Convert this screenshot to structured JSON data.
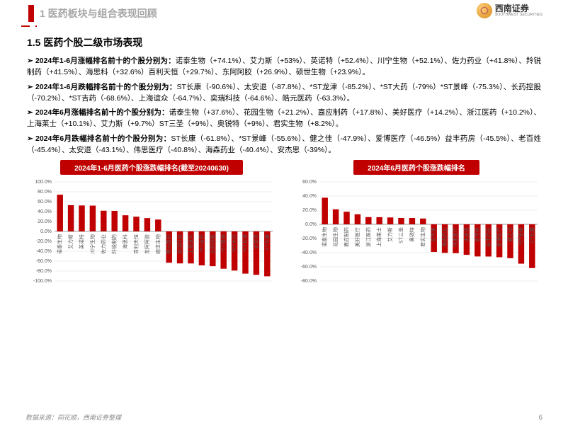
{
  "header": {
    "section_num_title": "1 医药板块与组合表现回顾",
    "logo_text": "西南证券",
    "logo_sub": "SOUTHWEST SECURITIES"
  },
  "section_title": "1.5 医药个股二级市场表现",
  "bullets": [
    {
      "lead": "2024年1-6月涨幅排名前十的个股分别为：",
      "body": "诺泰生物（+74.1%）、艾力斯（+53%）、英诺特（+52.4%）、川宁生物（+52.1%）、佐力药业（+41.8%）、羚锐制药（+41.5%）、海思科（+32.6%）百利天恒（+29.7%）、东阿阿胶（+26.9%）、硕世生物（+23.9%）。"
    },
    {
      "lead": "2024年1-6月跌幅排名前十的个股分别为：",
      "body": "ST长康（-90.6%）、太安退（-87.8%）、*ST龙津（-85.2%）、*ST大药（-79%）*ST景峰（-75.3%）、长药控股（-70.2%）、*ST吉药（-68.6%）、上海谊众（-64.7%）、奕瑞科技（-64.6%）、皓元医药（-63.3%）。"
    },
    {
      "lead": "2024年6月涨幅排名前十的个股分别为：",
      "body": "诺泰生物（+37.6%）、花园生物（+21.2%）、嘉应制药（+17.8%）、美好医疗（+14.2%）、浙江医药（+10.2%）、上海莱士（+10.1%）、艾力斯（+9.7%）ST三圣（+9%）、奥锐特（+9%）、君实生物（+8.2%）。"
    },
    {
      "lead": "2024年6月跌幅排名前十的个股分别为：",
      "body": "ST长康（-61.8%）、*ST景峰（-55.6%）、健之佳（-47.9%）、爱博医疗（-46.5%）益丰药房（-45.5%）、老百姓（-45.4%）、太安退（-43.1%）、伟思医疗（-40.8%）、海森药业（-40.4%）、安杰思（-39%）。"
    }
  ],
  "chart_left": {
    "title": "2024年1-6月医药个股涨跌幅排名(截至20240630)",
    "type": "bar",
    "bar_color": "#c00000",
    "grid_color": "#d9d9d9",
    "axis_color": "#808080",
    "label_color": "#595959",
    "background_color": "#ffffff",
    "ylim": [
      -100,
      100
    ],
    "ytick_step": 20,
    "ytick_format": "percent",
    "label_fontsize": 7,
    "tick_fontsize": 7,
    "categories": [
      "诺泰生物",
      "艾力斯",
      "英诺特",
      "川宁生物",
      "佐力药业",
      "羚锐制药",
      "海思科",
      "百利天恒",
      "东阿阿胶",
      "硕世生物",
      "皓元医药",
      "奕瑞科技",
      "上海谊众",
      "*ST吉药",
      "长药控股",
      "*ST景峰",
      "*ST大药",
      "*ST龙津",
      "太安退",
      "ST长康"
    ],
    "values": [
      74.1,
      53,
      52.4,
      52.1,
      41.8,
      41.5,
      32.6,
      29.7,
      26.9,
      23.9,
      -63.3,
      -64.6,
      -64.7,
      -68.6,
      -70.2,
      -75.3,
      -79,
      -85.2,
      -87.8,
      -90.6
    ]
  },
  "chart_right": {
    "title": "2024年6月医药个股涨跌幅排名",
    "type": "bar",
    "bar_color": "#c00000",
    "grid_color": "#d9d9d9",
    "axis_color": "#808080",
    "label_color": "#595959",
    "background_color": "#ffffff",
    "ylim": [
      -80,
      60
    ],
    "ytick_step": 20,
    "ytick_format": "percent",
    "label_fontsize": 7,
    "tick_fontsize": 7,
    "categories": [
      "诺泰生物",
      "花园生物",
      "嘉应制药",
      "美好医疗",
      "浙江医药",
      "上海莱士",
      "艾力斯",
      "ST三圣",
      "奥锐特",
      "君实生物",
      "安杰思",
      "海森药业",
      "伟思医疗",
      "太安退",
      "老百姓",
      "益丰药房",
      "爱博医疗",
      "健之佳",
      "*ST景峰",
      "ST长康"
    ],
    "values": [
      37.6,
      21.2,
      17.8,
      14.2,
      10.2,
      10.1,
      9.7,
      9,
      9,
      8.2,
      -39,
      -40.4,
      -40.8,
      -43.1,
      -45.4,
      -45.5,
      -46.5,
      -47.9,
      -55.6,
      -61.8
    ]
  },
  "footer": "数据来源：同花顺，西南证券整理",
  "page_number": "6"
}
